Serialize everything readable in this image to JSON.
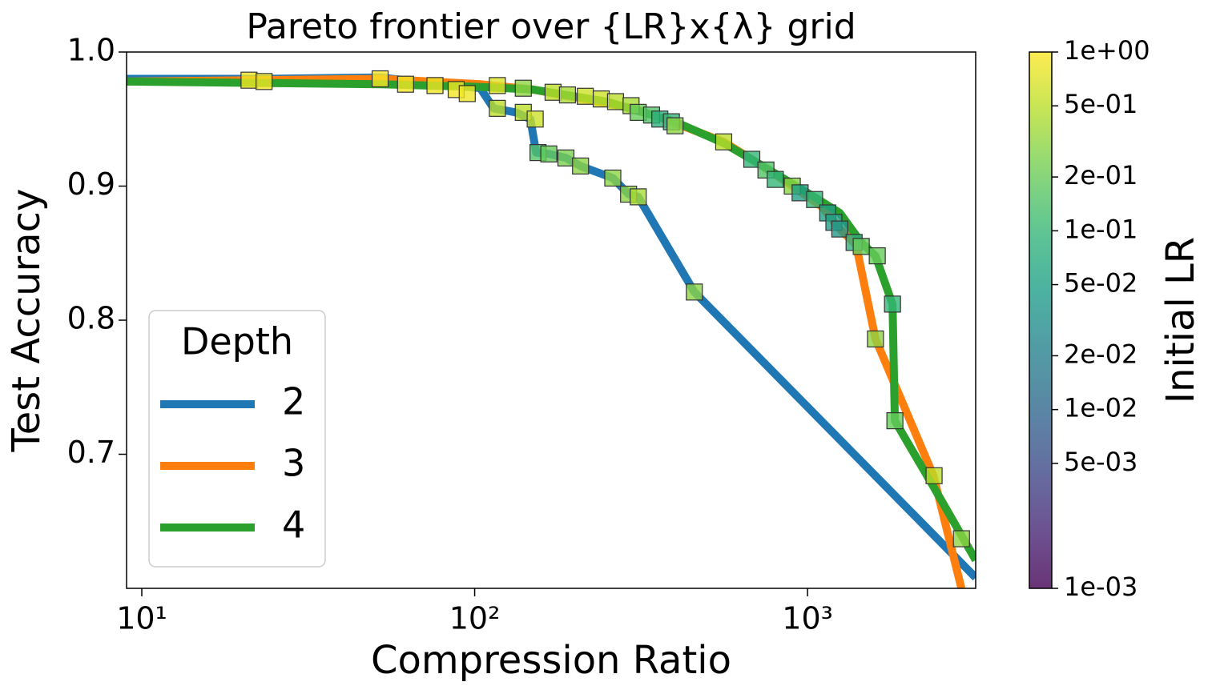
{
  "chart_data": {
    "type": "line",
    "title": "Pareto frontier over {LR}x{λ} grid",
    "xlabel": "Compression Ratio",
    "ylabel": "Test Accuracy",
    "xscale": "log",
    "xlim": [
      9,
      3200
    ],
    "ylim": [
      0.6,
      1.0
    ],
    "xticks": [
      {
        "value": 10,
        "label": "10¹"
      },
      {
        "value": 100,
        "label": "10²"
      },
      {
        "value": 1000,
        "label": "10³"
      }
    ],
    "yticks": [
      {
        "value": 1.0,
        "label": "1.0"
      },
      0.9,
      0.8,
      0.7
    ],
    "legend_title": "Depth",
    "legend": "lower left",
    "series": [
      {
        "name": "2",
        "color": "#1f77b4",
        "x": [
          9,
          23.2,
          52,
          104,
          114,
          133,
          147,
          153,
          167,
          188,
          208,
          260,
          290,
          310,
          457,
          3200
        ],
        "values": [
          0.98,
          0.98,
          0.981,
          0.973,
          0.958,
          0.955,
          0.95,
          0.925,
          0.924,
          0.921,
          0.915,
          0.906,
          0.894,
          0.892,
          0.821,
          0.608
        ]
      },
      {
        "name": "3",
        "color": "#ff7f0e",
        "x": [
          9,
          52,
          104,
          150,
          300,
          420,
          560,
          700,
          900,
          1100,
          1250,
          1400,
          1600,
          2390,
          2900
        ],
        "values": [
          0.978,
          0.98,
          0.976,
          0.972,
          0.958,
          0.945,
          0.933,
          0.918,
          0.9,
          0.885,
          0.868,
          0.856,
          0.786,
          0.684,
          0.6
        ]
      },
      {
        "name": "4",
        "color": "#2ca02c",
        "x": [
          9,
          52,
          104,
          150,
          250,
          300,
          400,
          560,
          700,
          1000,
          1250,
          1450,
          1600,
          1800,
          1830,
          2400,
          3200
        ],
        "values": [
          0.978,
          0.976,
          0.974,
          0.972,
          0.963,
          0.957,
          0.948,
          0.932,
          0.918,
          0.895,
          0.88,
          0.858,
          0.848,
          0.812,
          0.725,
          0.675,
          0.621
        ]
      }
    ],
    "points": {
      "x": [
        21,
        23.3,
        52,
        62,
        76,
        88,
        95,
        117,
        117,
        140,
        140,
        152,
        155,
        167,
        172,
        188,
        190,
        208,
        215,
        240,
        260,
        265,
        290,
        295,
        310,
        310,
        340,
        360,
        390,
        400,
        457,
        560,
        680,
        750,
        800,
        900,
        950,
        1050,
        1150,
        1200,
        1250,
        1380,
        1450,
        1600,
        1620,
        1800,
        1830,
        2400,
        2900
      ],
      "y": [
        0.979,
        0.978,
        0.98,
        0.976,
        0.975,
        0.972,
        0.969,
        0.975,
        0.958,
        0.973,
        0.955,
        0.95,
        0.925,
        0.924,
        0.97,
        0.921,
        0.968,
        0.915,
        0.967,
        0.965,
        0.906,
        0.963,
        0.894,
        0.96,
        0.892,
        0.955,
        0.953,
        0.95,
        0.948,
        0.945,
        0.821,
        0.933,
        0.92,
        0.912,
        0.905,
        0.9,
        0.895,
        0.89,
        0.88,
        0.873,
        0.868,
        0.858,
        0.855,
        0.786,
        0.848,
        0.812,
        0.725,
        0.684,
        0.637
      ],
      "lr": [
        0.9,
        0.9,
        0.95,
        0.9,
        0.85,
        0.9,
        0.85,
        0.7,
        0.5,
        0.3,
        0.5,
        0.6,
        0.15,
        0.2,
        0.5,
        0.25,
        0.4,
        0.3,
        0.6,
        0.6,
        0.3,
        0.5,
        0.3,
        0.4,
        0.4,
        0.2,
        0.15,
        0.08,
        0.1,
        0.3,
        0.3,
        0.5,
        0.1,
        0.15,
        0.1,
        0.3,
        0.05,
        0.1,
        0.05,
        0.05,
        0.04,
        0.08,
        0.2,
        0.3,
        0.2,
        0.1,
        0.2,
        0.5,
        0.3
      ]
    },
    "colorbar": {
      "label": "Initial LR",
      "cmap": "viridis",
      "scale": "log",
      "lim": [
        0.001,
        1
      ],
      "ticks": [
        {
          "value": 1,
          "label": "1e+00"
        },
        {
          "value": 0.5,
          "label": "5e-01"
        },
        {
          "value": 0.2,
          "label": "2e-01"
        },
        {
          "value": 0.1,
          "label": "1e-01"
        },
        {
          "value": 0.05,
          "label": "5e-02"
        },
        {
          "value": 0.02,
          "label": "2e-02"
        },
        {
          "value": 0.01,
          "label": "1e-02"
        },
        {
          "value": 0.005,
          "label": "5e-03"
        },
        {
          "value": 0.001,
          "label": "1e-03"
        }
      ]
    }
  }
}
